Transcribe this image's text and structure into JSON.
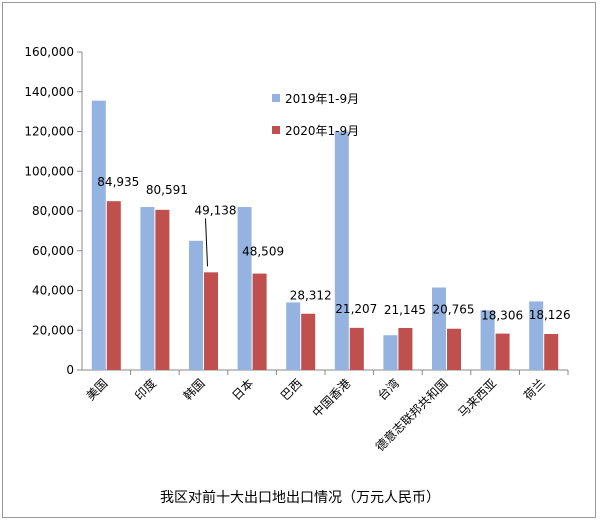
{
  "chart_data": {
    "type": "bar",
    "title": "我区对前十大出口地出口情况（万元人民币）",
    "categories": [
      "美国",
      "印度",
      "韩国",
      "日本",
      "巴西",
      "中国香港",
      "台湾",
      "德意志联邦共和国",
      "马来西亚",
      "荷兰"
    ],
    "series": [
      {
        "name": "2019年1-9月",
        "color": "#95b3e0",
        "values": [
          135500,
          82000,
          65000,
          82000,
          34000,
          120000,
          17500,
          41500,
          30000,
          34500
        ]
      },
      {
        "name": "2020年1-9月",
        "color": "#c0504d",
        "values": [
          84935,
          80591,
          49138,
          48509,
          28312,
          21207,
          21145,
          20765,
          18306,
          18126
        ]
      }
    ],
    "data_labels": [
      "84,935",
      "80,591",
      "49,138",
      "48,509",
      "28,312",
      "21,207",
      "21,145",
      "20,765",
      "18,306",
      "18,126"
    ],
    "yticks": [
      "0",
      "20,000",
      "40,000",
      "60,000",
      "80,000",
      "100,000",
      "120,000",
      "140,000",
      "160,000"
    ],
    "ylim": [
      0,
      160000
    ],
    "legend_position": "top-center"
  }
}
